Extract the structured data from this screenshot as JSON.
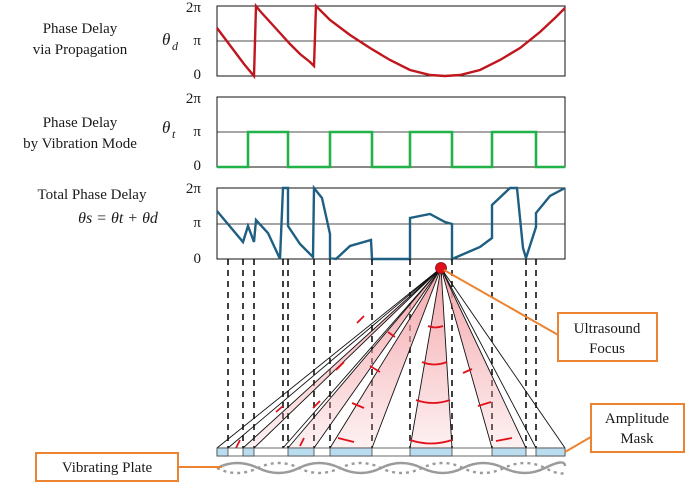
{
  "panels": {
    "propagation": {
      "label_line1": "Phase Delay",
      "label_line2": "via Propagation",
      "symbol": "θ",
      "symbol_sub": "d",
      "color": "#c0161d"
    },
    "vibration": {
      "label_line1": "Phase Delay",
      "label_line2": "by Vibration Mode",
      "symbol": "θ",
      "symbol_sub": "t",
      "color": "#21b34a"
    },
    "total": {
      "label_line1": "Total Phase Delay",
      "equation": "θs = θt + θd",
      "color": "#1e5f82"
    }
  },
  "ticks": {
    "top": "2π",
    "mid": "π",
    "bottom": "0"
  },
  "callouts": {
    "focus_line1": "Ultrasound",
    "focus_line2": "Focus",
    "mask_line1": "Amplitude",
    "mask_line2": "Mask",
    "plate": "Vibrating Plate"
  },
  "colors": {
    "callout_border": "#ec8331",
    "mask_fill": "#b9dcef",
    "beam_fill": "#f3a3a8",
    "wavefront": "#e0101a",
    "focus_dot": "#e0101a",
    "plate_wave": "#9b9b9b"
  }
}
